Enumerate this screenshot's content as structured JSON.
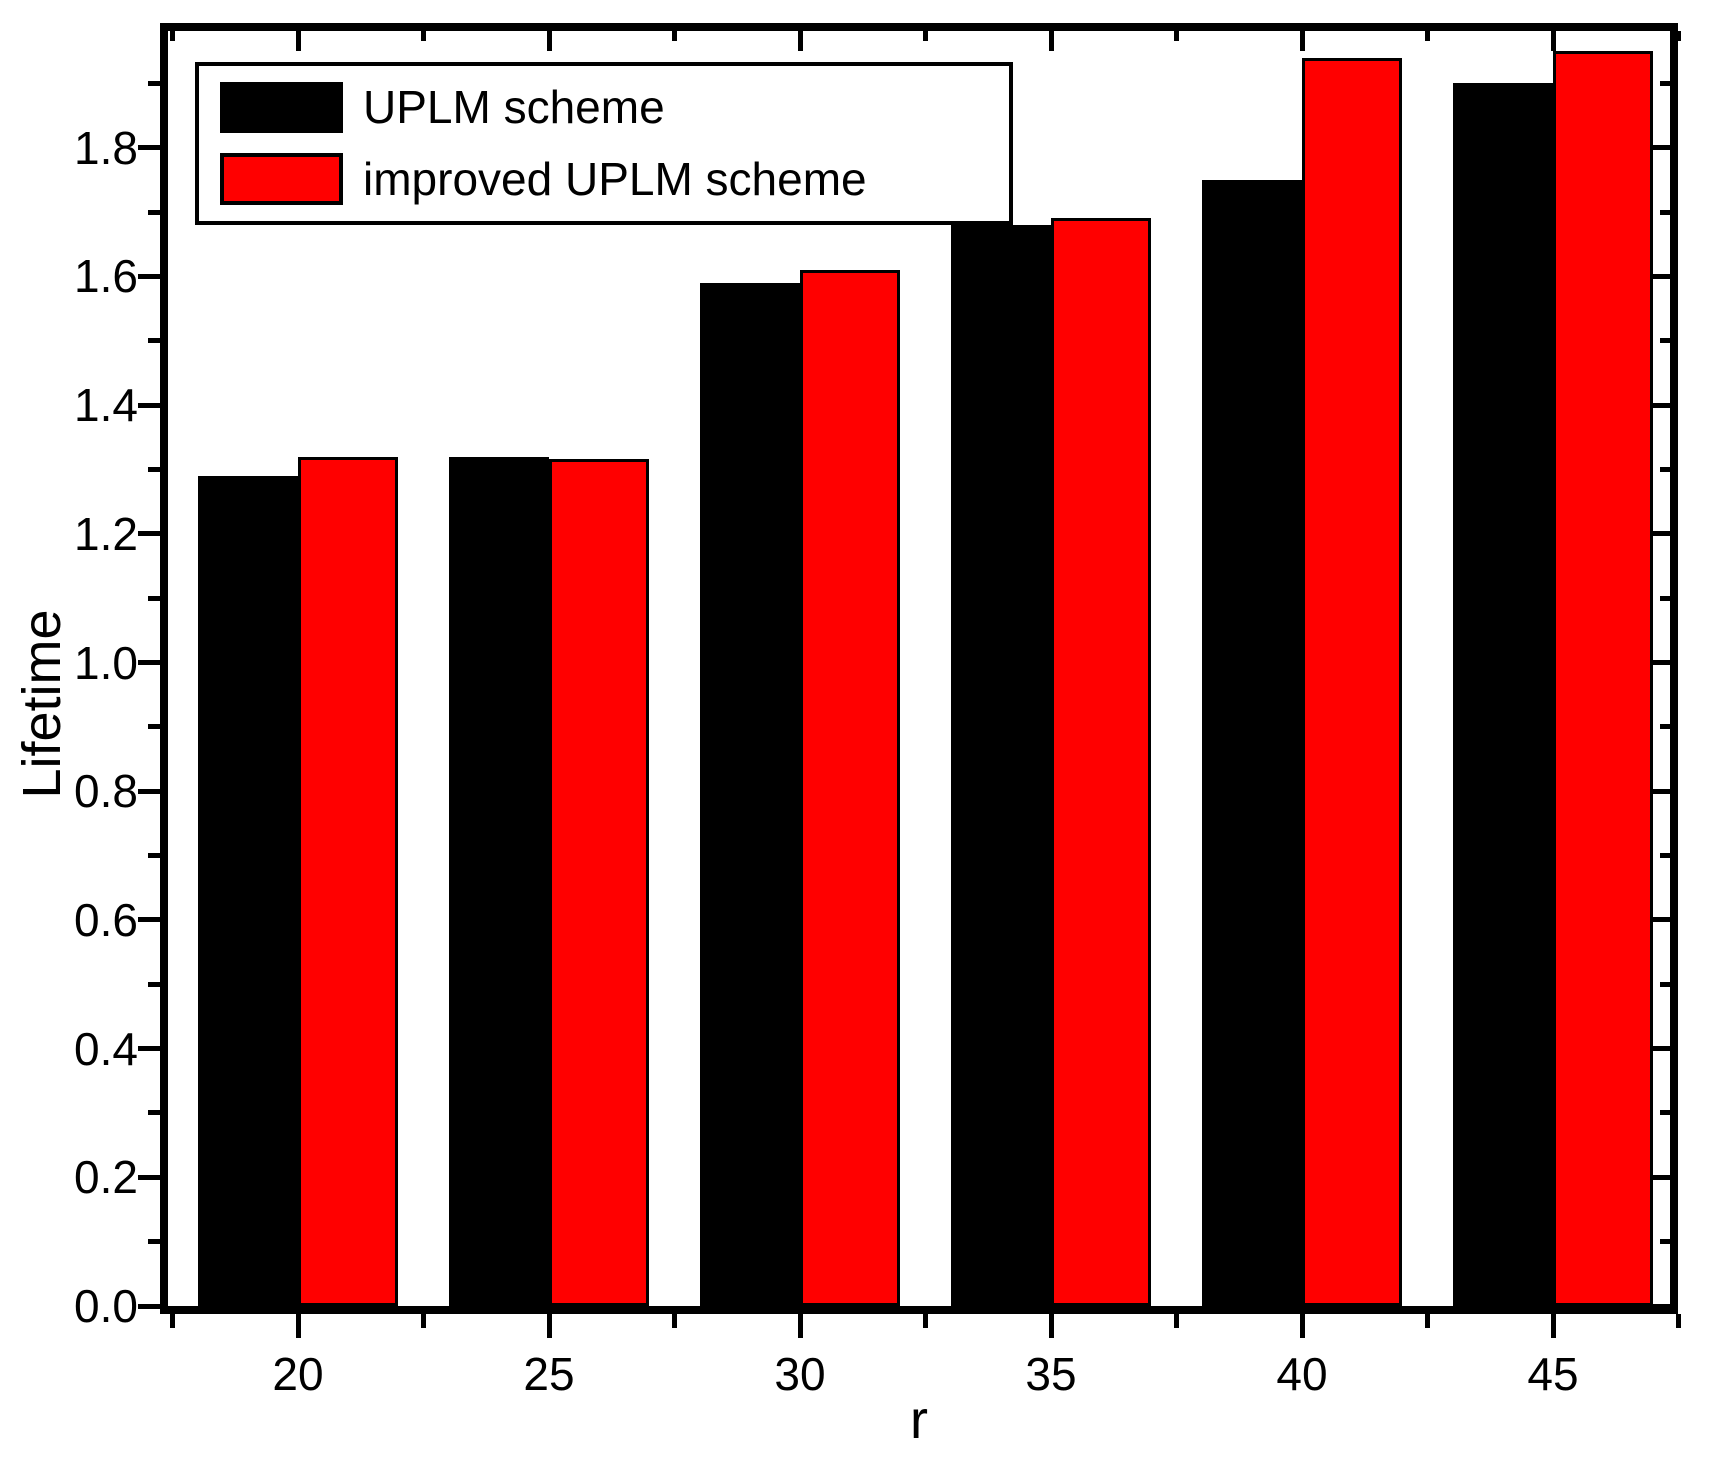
{
  "chart_data": {
    "type": "bar",
    "title": "",
    "xlabel": "r",
    "ylabel": "Lifetime",
    "categories": [
      "20",
      "25",
      "30",
      "35",
      "40",
      "45"
    ],
    "series": [
      {
        "name": "UPLM scheme",
        "color": "#000000",
        "values": [
          1.29,
          1.32,
          1.59,
          1.68,
          1.75,
          1.9
        ]
      },
      {
        "name": "improved UPLM scheme",
        "color": "#ff0000",
        "values": [
          1.32,
          1.317,
          1.61,
          1.69,
          1.94,
          1.95
        ]
      }
    ],
    "ylim": [
      0,
      2.0
    ],
    "y_major_ticks": [
      0.0,
      0.2,
      0.4,
      0.6,
      0.8,
      1.0,
      1.2,
      1.4,
      1.6,
      1.8
    ],
    "y_minor_ticks": [
      0.1,
      0.3,
      0.5,
      0.7,
      0.9,
      1.1,
      1.3,
      1.5,
      1.7,
      1.9
    ],
    "y_tick_labels": [
      "0.0",
      "0.2",
      "0.4",
      "0.6",
      "0.8",
      "1.0",
      "1.2",
      "1.4",
      "1.6",
      "1.8"
    ],
    "x_tick_labels": [
      "20",
      "25",
      "30",
      "35",
      "40",
      "45"
    ],
    "grid": false,
    "bar_outline_color": "#000000",
    "legend": {
      "position": "top-left",
      "items": [
        "UPLM scheme",
        "improved UPLM scheme"
      ]
    }
  }
}
